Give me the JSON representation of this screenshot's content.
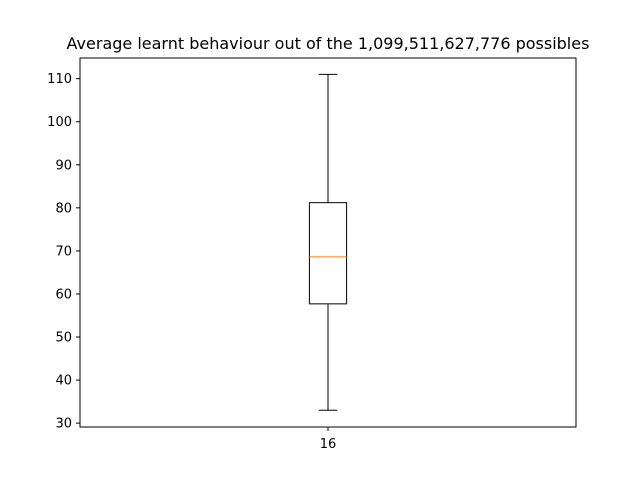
{
  "chart_data": {
    "type": "box",
    "title": "Average learnt behaviour out of the 1,099,511,627,776 possibles",
    "xlabel": "",
    "ylabel": "",
    "categories": [
      "16"
    ],
    "yticks": [
      30,
      40,
      50,
      60,
      70,
      80,
      90,
      100,
      110
    ],
    "ylim": [
      29.1,
      114.8
    ],
    "boxes": [
      {
        "category": "16",
        "whisker_low": 33.0,
        "q1": 57.7,
        "median": 68.6,
        "q3": 81.2,
        "whisker_high": 111.0
      }
    ],
    "grid": false,
    "colors": {
      "median": "#ff7f0e",
      "box": "#000000"
    }
  }
}
